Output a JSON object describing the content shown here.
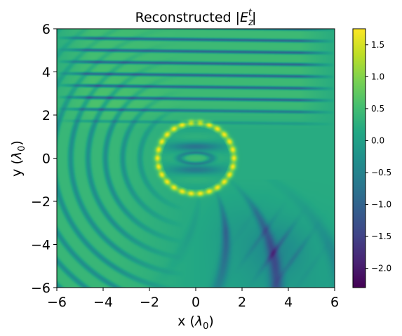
{
  "chart_data": {
    "type": "heatmap",
    "title": "Reconstructed |E_z^t|",
    "title_parts": {
      "pre": "Reconstructed |",
      "base": "E",
      "sub": "z",
      "sup": "t",
      "post": "|"
    },
    "xlabel": "x (λ0)",
    "xlabel_parts": {
      "pre": "x (",
      "sym": "λ",
      "sub": "0",
      "post": ")"
    },
    "ylabel": "y (λ0)",
    "ylabel_parts": {
      "pre": "y (",
      "sym": "λ",
      "sub": "0",
      "post": ")"
    },
    "xlim": [
      -6,
      6
    ],
    "ylim": [
      -6,
      6
    ],
    "x_ticks": [
      -6,
      -4,
      -2,
      0,
      2,
      4,
      6
    ],
    "x_tick_labels": [
      "−6",
      "−4",
      "−2",
      "0",
      "2",
      "4",
      "6"
    ],
    "y_ticks": [
      -6,
      -4,
      -2,
      0,
      2,
      4,
      6
    ],
    "y_tick_labels": [
      "−6",
      "−4",
      "−2",
      "0",
      "2",
      "4",
      "6"
    ],
    "colormap": "viridis",
    "colorbar": {
      "vmin": -2.3,
      "vmax": 1.75,
      "ticks": [
        1.5,
        1.0,
        0.5,
        0.0,
        -0.5,
        -1.0,
        -1.5,
        -2.0
      ],
      "tick_labels": [
        "1.5",
        "1.0",
        "0.5",
        "0.0",
        "−0.5",
        "−1.0",
        "−1.5",
        "−2.0"
      ]
    },
    "field_features": {
      "background_value": 0.2,
      "scatterer_ring": {
        "center": [
          0,
          0
        ],
        "radius": 1.65,
        "peak_value": 1.7
      },
      "scatterer_interior_value": -0.4,
      "upper_right_fringe_period": 0.55,
      "shadow_value": -0.7
    },
    "grid": false,
    "legend": "none"
  }
}
